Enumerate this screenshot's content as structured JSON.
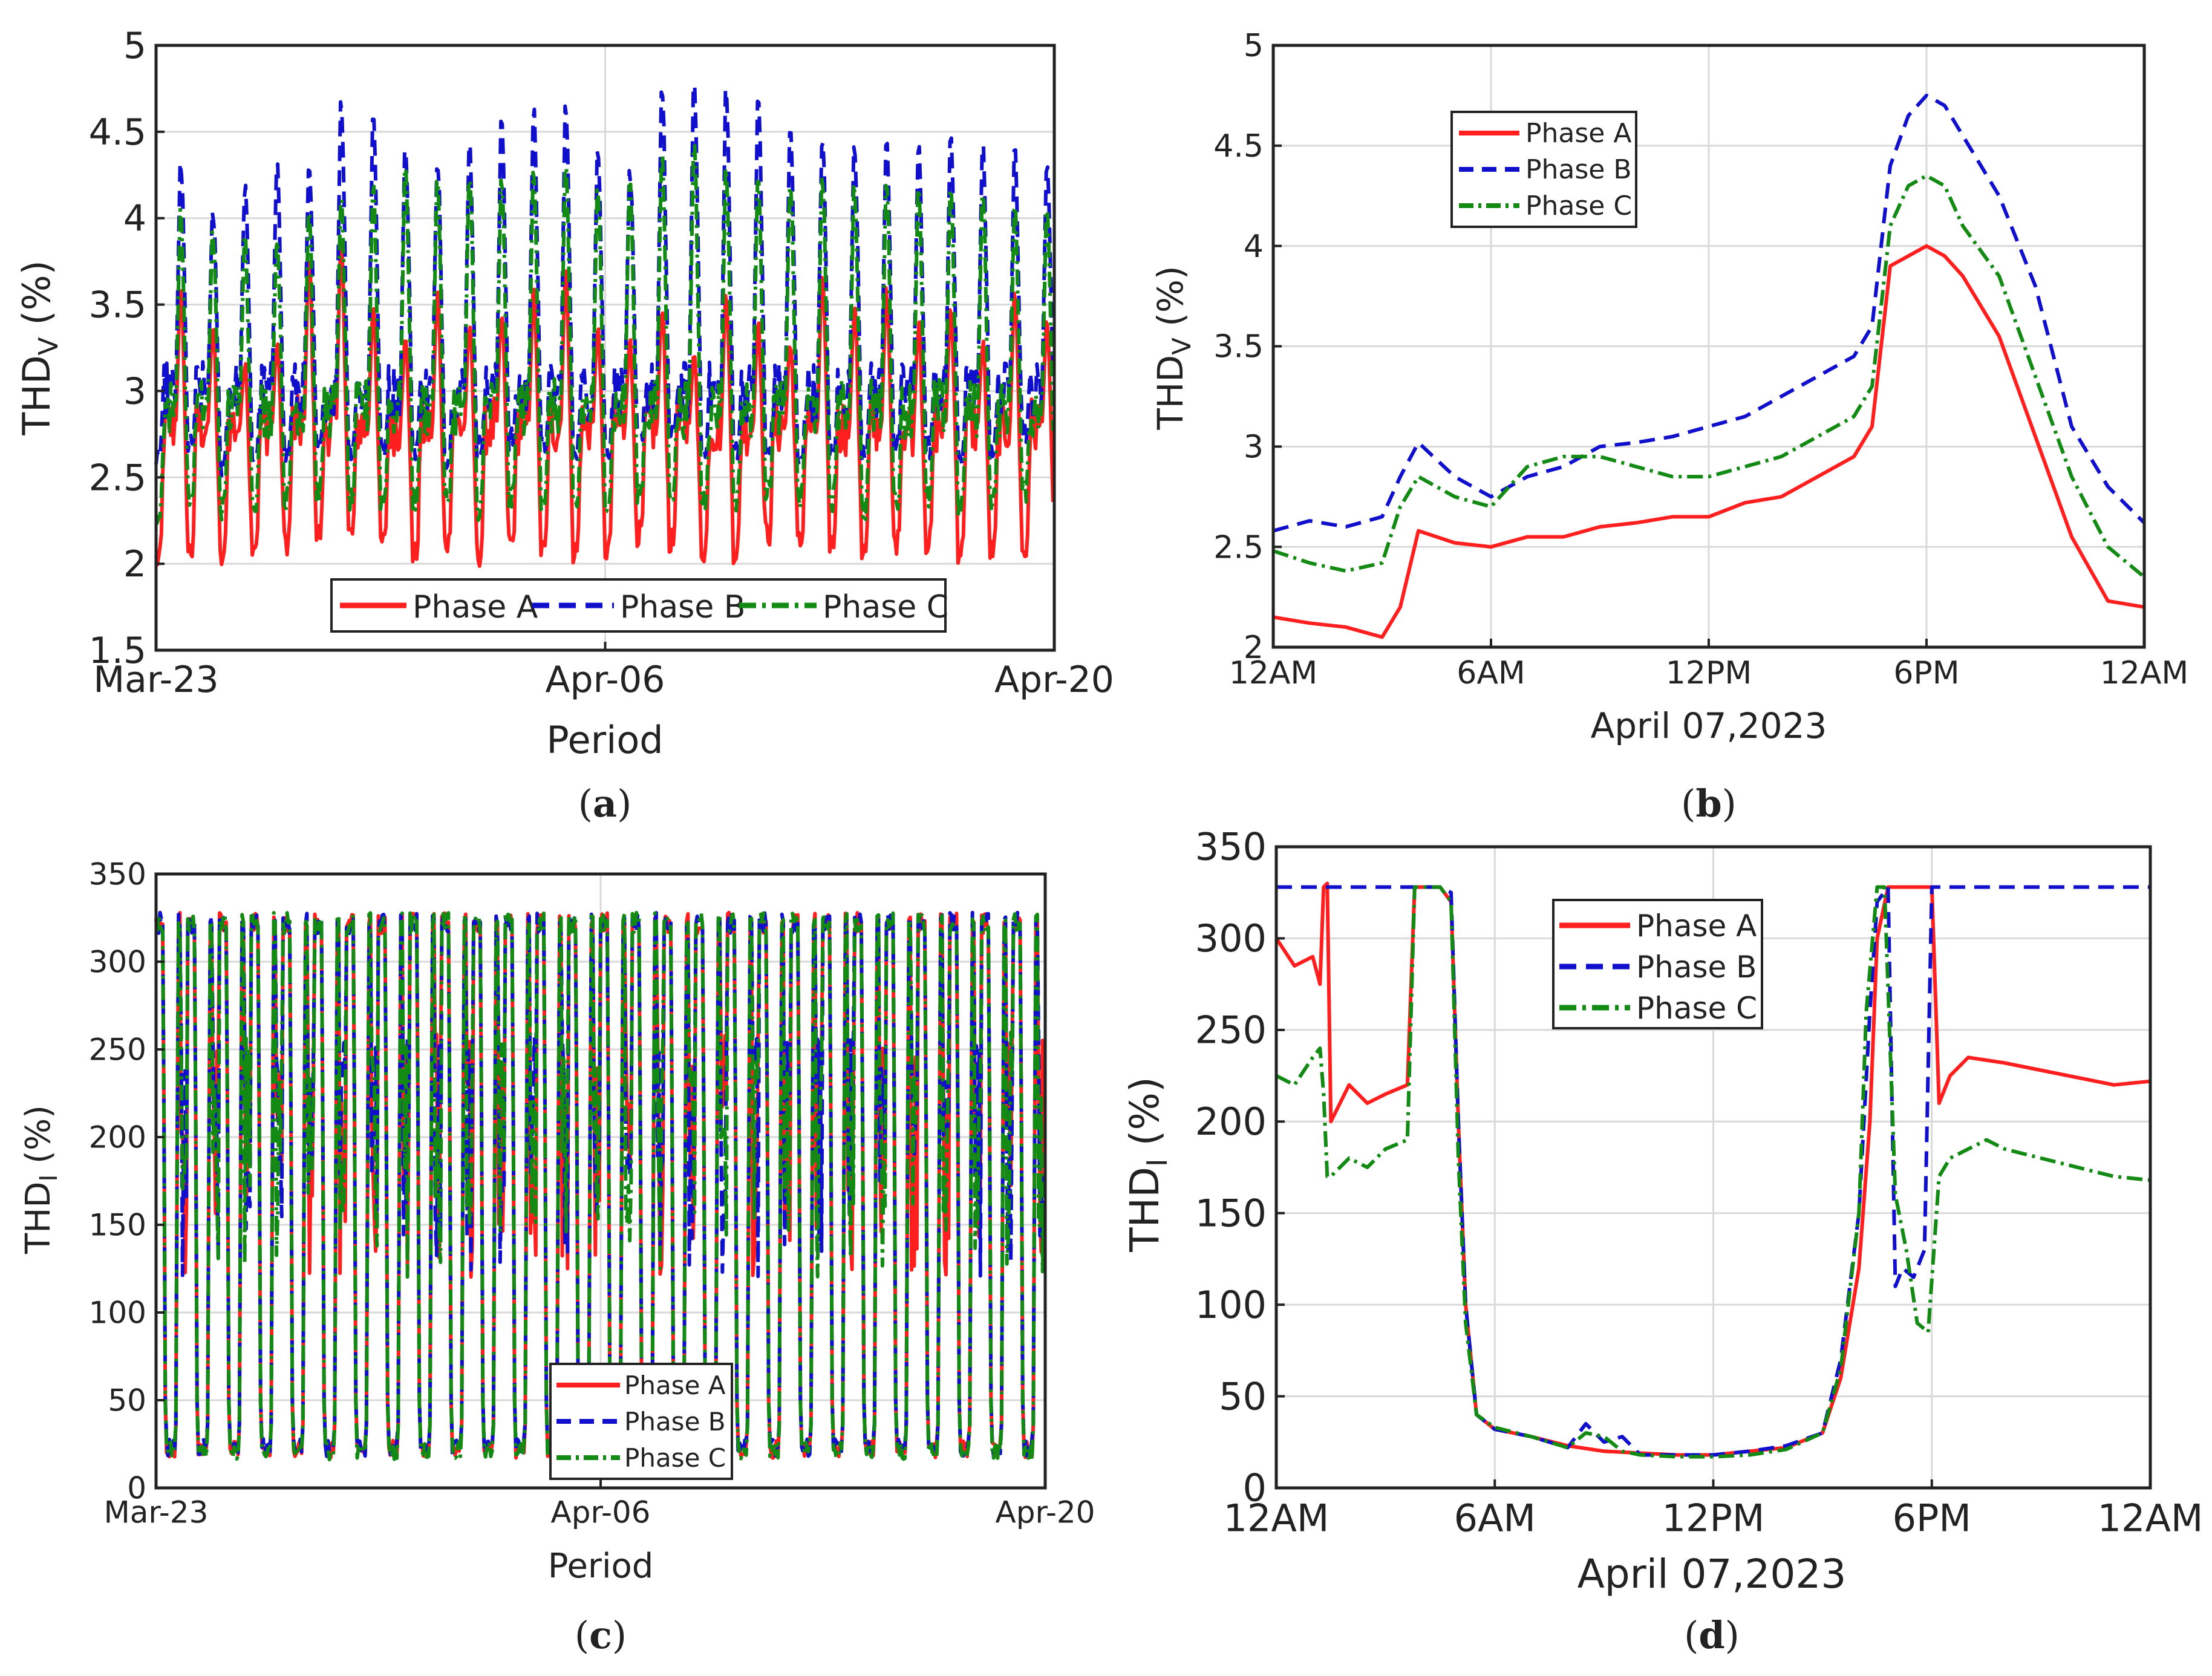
{
  "colors": {
    "phase_a": "#ff1f1f",
    "phase_b": "#1010cc",
    "phase_c": "#138a13",
    "grid": "#d9d9d9"
  },
  "legend": [
    "Phase A",
    "Phase B",
    "Phase C"
  ],
  "chart_data": [
    {
      "type": "line",
      "panel": "a",
      "caption_letter": "a",
      "xlabel": "Period",
      "ylabel_main": "THD",
      "ylabel_sub": "V",
      "ylabel_tail": " (%)",
      "xticks": [
        "Mar-23",
        "Apr-06",
        "Apr-20"
      ],
      "xtick_values": [
        0,
        14,
        28
      ],
      "xlim": [
        0,
        28
      ],
      "ylim": [
        1.5,
        5
      ],
      "yticks": [
        1.5,
        2,
        2.5,
        3,
        3.5,
        4,
        4.5,
        5
      ],
      "legend_position": "bottom-center",
      "grid": true,
      "series": [
        {
          "name": "Phase A",
          "style": "solid",
          "daily": true,
          "days": 28,
          "peaks": [
            3.6,
            3.4,
            3.2,
            3.3,
            3.8,
            3.9,
            3.5,
            3.3,
            3.6,
            3.4,
            3.5,
            3.6,
            3.7,
            3.4,
            3.3,
            3.5,
            3.2,
            3.6,
            3.4,
            3.3,
            3.7,
            3.5,
            3.6,
            3.4,
            3.5,
            3.3,
            3.6,
            3.4
          ],
          "lows": [
            1.95,
            2.0,
            1.95,
            2.05,
            2.05,
            2.1,
            2.1,
            2.05,
            1.98,
            2.05,
            1.98,
            2.05,
            2.0,
            2.0,
            2.0,
            2.1,
            2.05,
            2.0,
            2.0,
            2.1,
            2.05,
            2.05,
            2.0,
            2.05,
            2.05,
            2.0,
            2.0,
            1.98
          ],
          "mid": 2.8
        },
        {
          "name": "Phase B",
          "style": "dashed",
          "daily": true,
          "days": 28,
          "peaks": [
            4.35,
            4.05,
            4.2,
            4.35,
            4.35,
            4.7,
            4.6,
            4.45,
            4.35,
            4.45,
            4.6,
            4.65,
            4.65,
            4.4,
            4.3,
            4.8,
            4.85,
            4.75,
            4.7,
            4.55,
            4.5,
            4.45,
            4.5,
            4.45,
            4.5,
            4.45,
            4.4,
            4.3
          ],
          "lows": [
            2.55,
            2.6,
            2.5,
            2.55,
            2.55,
            2.6,
            2.6,
            2.6,
            2.6,
            2.55,
            2.6,
            2.65,
            2.6,
            2.6,
            2.6,
            2.65,
            2.65,
            2.6,
            2.6,
            2.55,
            2.5,
            2.55,
            2.6,
            2.6,
            2.6,
            2.55,
            2.6,
            2.7
          ],
          "mid": 3.0
        },
        {
          "name": "Phase C",
          "style": "dashdot",
          "daily": true,
          "days": 28,
          "peaks": [
            4.05,
            3.95,
            3.9,
            3.9,
            4.05,
            4.15,
            4.2,
            4.3,
            4.25,
            4.3,
            4.25,
            4.3,
            4.35,
            4.2,
            4.25,
            4.4,
            4.45,
            4.3,
            4.3,
            4.25,
            4.25,
            4.2,
            4.2,
            4.2,
            4.2,
            4.2,
            4.1,
            4.05
          ],
          "lows": [
            2.2,
            2.3,
            2.25,
            2.3,
            2.3,
            2.35,
            2.3,
            2.3,
            2.3,
            2.3,
            2.25,
            2.3,
            2.3,
            2.25,
            2.3,
            2.35,
            2.35,
            2.3,
            2.3,
            2.35,
            2.3,
            2.3,
            2.25,
            2.3,
            2.3,
            2.25,
            2.3,
            2.35
          ],
          "mid": 2.9
        }
      ]
    },
    {
      "type": "line",
      "panel": "b",
      "caption_letter": "b",
      "xlabel": "April 07,2023",
      "ylabel_main": "THD",
      "ylabel_sub": "V",
      "ylabel_tail": " (%)",
      "xticks": [
        "12AM",
        "6AM",
        "12PM",
        "6PM",
        "12AM"
      ],
      "xtick_values": [
        0,
        6,
        12,
        18,
        24
      ],
      "xlim": [
        0,
        24
      ],
      "ylim": [
        2,
        5
      ],
      "yticks": [
        2,
        2.5,
        3,
        3.5,
        4,
        4.5,
        5
      ],
      "legend_position": "top-left",
      "grid": true,
      "series": [
        {
          "name": "Phase A",
          "style": "solid",
          "x": [
            0,
            1,
            2,
            3,
            3.5,
            4,
            5,
            6,
            7,
            8,
            9,
            10,
            11,
            12,
            13,
            14,
            15,
            16,
            16.5,
            17,
            17.5,
            18,
            18.5,
            19,
            20,
            21,
            22,
            23,
            24
          ],
          "y": [
            2.15,
            2.12,
            2.1,
            2.05,
            2.2,
            2.58,
            2.52,
            2.5,
            2.55,
            2.55,
            2.6,
            2.62,
            2.65,
            2.65,
            2.72,
            2.75,
            2.85,
            2.95,
            3.1,
            3.9,
            3.95,
            4.0,
            3.95,
            3.85,
            3.55,
            3.05,
            2.55,
            2.23,
            2.2
          ]
        },
        {
          "name": "Phase B",
          "style": "dashed",
          "x": [
            0,
            1,
            2,
            3,
            3.5,
            4,
            5,
            6,
            7,
            8,
            9,
            10,
            11,
            12,
            13,
            14,
            15,
            16,
            16.5,
            17,
            17.5,
            18,
            18.5,
            19,
            20,
            21,
            22,
            23,
            24
          ],
          "y": [
            2.58,
            2.63,
            2.6,
            2.65,
            2.85,
            3.02,
            2.85,
            2.75,
            2.85,
            2.9,
            3.0,
            3.02,
            3.05,
            3.1,
            3.15,
            3.25,
            3.35,
            3.45,
            3.6,
            4.4,
            4.65,
            4.75,
            4.7,
            4.55,
            4.25,
            3.8,
            3.1,
            2.8,
            2.62
          ]
        },
        {
          "name": "Phase C",
          "style": "dashdot",
          "x": [
            0,
            1,
            2,
            3,
            3.5,
            4,
            5,
            6,
            7,
            8,
            9,
            10,
            11,
            12,
            13,
            14,
            15,
            16,
            16.5,
            17,
            17.5,
            18,
            18.5,
            19,
            20,
            21,
            22,
            23,
            24
          ],
          "y": [
            2.48,
            2.42,
            2.38,
            2.42,
            2.7,
            2.85,
            2.75,
            2.7,
            2.9,
            2.95,
            2.95,
            2.9,
            2.85,
            2.85,
            2.9,
            2.95,
            3.05,
            3.15,
            3.3,
            4.1,
            4.3,
            4.35,
            4.3,
            4.1,
            3.85,
            3.35,
            2.85,
            2.5,
            2.35
          ]
        }
      ]
    },
    {
      "type": "line",
      "panel": "c",
      "caption_letter": "c",
      "xlabel": "Period",
      "ylabel_main": "THD",
      "ylabel_sub": "I",
      "ylabel_tail": " (%)",
      "xticks": [
        "Mar-23",
        "Apr-06",
        "Apr-20"
      ],
      "xtick_values": [
        0,
        14,
        28
      ],
      "xlim": [
        0,
        28
      ],
      "ylim": [
        0,
        350
      ],
      "yticks": [
        0,
        50,
        100,
        150,
        200,
        250,
        300,
        350
      ],
      "legend_position": "bottom-center",
      "grid": true,
      "series": [
        {
          "name": "Phase A",
          "style": "solid",
          "daily": true,
          "days": 28,
          "cap": 328,
          "low": 17
        },
        {
          "name": "Phase B",
          "style": "dashed",
          "daily": true,
          "days": 28,
          "cap": 328,
          "low": 18
        },
        {
          "name": "Phase C",
          "style": "dashdot",
          "daily": true,
          "days": 28,
          "cap": 328,
          "low": 16
        }
      ]
    },
    {
      "type": "line",
      "panel": "d",
      "caption_letter": "d",
      "xlabel": "April 07,2023",
      "ylabel_main": "THD",
      "ylabel_sub": "I",
      "ylabel_tail": " (%)",
      "xticks": [
        "12AM",
        "6AM",
        "12PM",
        "6PM",
        "12AM"
      ],
      "xtick_values": [
        0,
        6,
        12,
        18,
        24
      ],
      "xlim": [
        0,
        24
      ],
      "ylim": [
        0,
        350
      ],
      "yticks": [
        0,
        50,
        100,
        150,
        200,
        250,
        300,
        350
      ],
      "legend_position": "top-center",
      "grid": true,
      "series": [
        {
          "name": "Phase A",
          "style": "solid",
          "x": [
            0,
            0.5,
            1,
            1.2,
            1.3,
            1.4,
            1.5,
            2,
            2.5,
            3,
            3.6,
            3.8,
            4,
            4.5,
            4.8,
            5,
            5.2,
            5.5,
            6,
            7,
            8,
            9,
            10,
            11,
            12,
            13,
            14,
            15,
            15.5,
            16,
            16.3,
            16.5,
            16.8,
            17,
            17.5,
            17.7,
            18,
            18.2,
            18.5,
            19,
            20,
            21,
            22,
            23,
            24
          ],
          "y": [
            300,
            285,
            290,
            275,
            328,
            330,
            200,
            220,
            210,
            215,
            220,
            328,
            328,
            328,
            320,
            200,
            100,
            40,
            32,
            28,
            23,
            20,
            19,
            18,
            18,
            20,
            22,
            30,
            60,
            120,
            200,
            300,
            328,
            328,
            328,
            328,
            328,
            210,
            225,
            235,
            232,
            228,
            224,
            220,
            222
          ]
        },
        {
          "name": "Phase B",
          "style": "dashed",
          "x": [
            0,
            3.6,
            3.8,
            4,
            4.5,
            4.8,
            5,
            5.2,
            5.5,
            6,
            7,
            8,
            8.5,
            9,
            9.5,
            10,
            11,
            12,
            13,
            14,
            15,
            15.5,
            16,
            16.3,
            16.5,
            16.8,
            17,
            17.2,
            17.5,
            17.8,
            18,
            18.2,
            24
          ],
          "y": [
            328,
            328,
            328,
            328,
            328,
            325,
            200,
            100,
            40,
            32,
            28,
            22,
            35,
            25,
            28,
            18,
            18,
            18,
            20,
            23,
            30,
            70,
            150,
            260,
            320,
            328,
            110,
            120,
            115,
            130,
            328,
            328,
            328
          ]
        },
        {
          "name": "Phase C",
          "style": "dashdot",
          "x": [
            0,
            0.5,
            1,
            1.2,
            1.3,
            1.4,
            1.5,
            2,
            2.5,
            3,
            3.6,
            3.8,
            4,
            4.5,
            4.8,
            5,
            5.2,
            5.5,
            6,
            7,
            8,
            8.5,
            9,
            9.5,
            10,
            11,
            12,
            13,
            14,
            15,
            15.5,
            16,
            16.2,
            16.5,
            16.7,
            17,
            17.3,
            17.6,
            17.9,
            18.2,
            18.5,
            19,
            19.5,
            20,
            21,
            22,
            23,
            24
          ],
          "y": [
            225,
            220,
            235,
            240,
            215,
            170,
            170,
            180,
            175,
            185,
            190,
            328,
            328,
            328,
            320,
            180,
            90,
            40,
            33,
            28,
            22,
            30,
            28,
            20,
            18,
            17,
            17,
            18,
            21,
            30,
            65,
            150,
            260,
            328,
            328,
            160,
            130,
            90,
            85,
            170,
            180,
            185,
            190,
            185,
            180,
            175,
            170,
            168
          ]
        }
      ]
    }
  ]
}
